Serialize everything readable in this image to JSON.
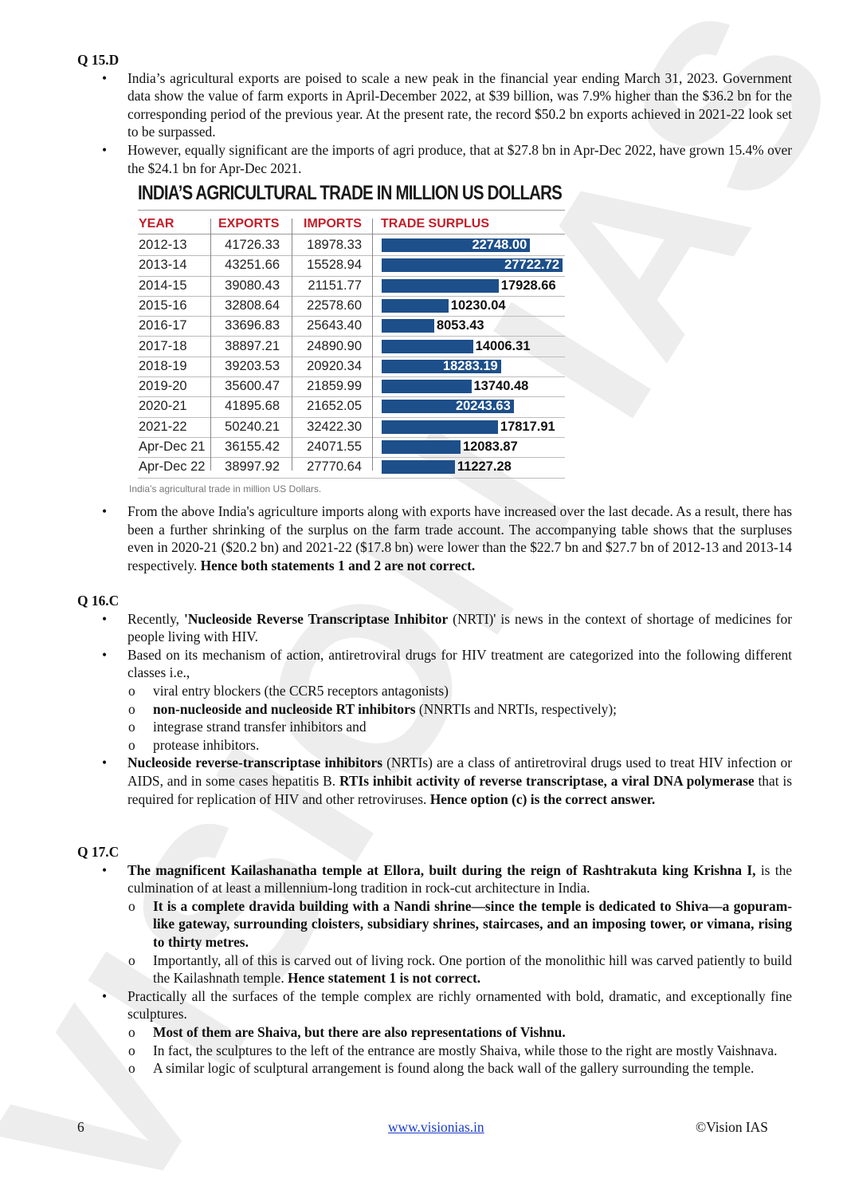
{
  "sections": [
    {
      "heading": "Q 15.D",
      "items": [
        {
          "type": "bullet",
          "segs": [
            {
              "t": "India’s agricultural exports are poised to scale a new peak in the financial year ending March 31, 2023. Government data show the value of farm exports in April-December 2022, at $39 billion, was 7.9% higher than the $36.2 bn for the corresponding period of the previous year. At the present rate, the record $50.2 bn exports achieved in 2021-22 look set to be surpassed."
            }
          ]
        },
        {
          "type": "bullet",
          "segs": [
            {
              "t": "However, equally significant are the imports of agri produce, that at $27.8 bn in Apr-Dec 2022, have grown 15.4% over the $24.1 bn for Apr-Dec 2021."
            }
          ]
        }
      ]
    },
    {
      "heading": "",
      "items": [
        {
          "type": "bullet",
          "segs": [
            {
              "t": "From the above India's agriculture imports along with exports have increased over the last decade. As a result, there has been a further shrinking of the surplus on the farm trade account. The accompanying table shows that the surpluses even in 2020-21 ($20.2 bn) and 2021-22 ($17.8 bn) were lower than the $22.7 bn and $27.7 bn of 2012-13 and 2013-14 respectively. "
            },
            {
              "t": "Hence both statements 1 and 2 are not correct.",
              "b": true
            }
          ]
        }
      ]
    },
    {
      "heading": "Q 16.C",
      "items": [
        {
          "type": "bullet",
          "segs": [
            {
              "t": "Recently, "
            },
            {
              "t": "'Nucleoside Reverse Transcriptase Inhibitor",
              "b": true
            },
            {
              "t": " (NRTI)' is news in the context of shortage of medicines for people living with HIV."
            }
          ]
        },
        {
          "type": "bullet",
          "segs": [
            {
              "t": "Based on its mechanism of action, antiretroviral drugs for HIV treatment are categorized into the following different classes i.e.,"
            }
          ]
        },
        {
          "type": "sub",
          "segs": [
            {
              "t": "viral entry blockers (the CCR5 receptors antagonists)"
            }
          ]
        },
        {
          "type": "sub",
          "segs": [
            {
              "t": "non-nucleoside and nucleoside RT inhibitors",
              "b": true
            },
            {
              "t": " (NNRTIs and NRTIs, respectively);"
            }
          ]
        },
        {
          "type": "sub",
          "segs": [
            {
              "t": "integrase strand transfer inhibitors and"
            }
          ]
        },
        {
          "type": "sub",
          "segs": [
            {
              "t": "protease inhibitors."
            }
          ]
        },
        {
          "type": "bullet",
          "segs": [
            {
              "t": "Nucleoside reverse-transcriptase inhibitors",
              "b": true
            },
            {
              "t": " (NRTIs) are a class of antiretroviral drugs used to treat HIV infection or AIDS, and in some cases hepatitis B. "
            },
            {
              "t": "RTIs inhibit activity of reverse transcriptase, a viral DNA polymerase",
              "b": true
            },
            {
              "t": " that is required for replication of HIV and other retroviruses. "
            },
            {
              "t": "Hence option (c) is the correct answer.",
              "b": true
            }
          ]
        }
      ]
    },
    {
      "heading": "Q 17.C",
      "items": [
        {
          "type": "bullet",
          "segs": [
            {
              "t": "The magnificent Kailashanatha temple at Ellora, built during the reign of Rashtrakuta king Krishna I,",
              "b": true
            },
            {
              "t": " is the culmination of at least a millennium-long tradition in rock-cut architecture in India."
            }
          ]
        },
        {
          "type": "sub",
          "segs": [
            {
              "t": "It is a complete dravida building with a Nandi shrine—since the temple is dedicated to Shiva—a gopuram-like gateway, surrounding cloisters, subsidiary shrines, staircases, and an imposing tower, or vimana, rising to thirty metres.",
              "b": true
            }
          ]
        },
        {
          "type": "sub",
          "segs": [
            {
              "t": "Importantly, all of this is carved out of living rock. One portion of the monolithic hill was carved patiently to build the Kailashnath temple. "
            },
            {
              "t": "Hence statement 1 is not correct.",
              "b": true
            }
          ]
        },
        {
          "type": "bullet",
          "segs": [
            {
              "t": "Practically all the surfaces of the temple complex are richly ornamented with bold, dramatic, and exceptionally fine sculptures."
            }
          ]
        },
        {
          "type": "sub",
          "segs": [
            {
              "t": "Most of them are Shaiva, but there are also representations of Vishnu.",
              "b": true
            }
          ]
        },
        {
          "type": "sub",
          "segs": [
            {
              "t": "In fact, the sculptures to the left of the entrance are mostly Shaiva, while those to the right are mostly Vaishnava."
            }
          ]
        },
        {
          "type": "sub",
          "segs": [
            {
              "t": "A similar logic of sculptural arrangement is found along the back wall of the gallery surrounding the temple."
            }
          ]
        }
      ]
    }
  ],
  "markers": {
    "bullet": "•",
    "sub": "o"
  },
  "chart_data": {
    "type": "table",
    "title": "INDIA’S AGRICULTURAL TRADE IN MILLION US DOLLARS",
    "columns": [
      "YEAR",
      "EXPORTS",
      "IMPORTS",
      "TRADE SURPLUS"
    ],
    "header_color": "#c21f2a",
    "bar_color": "#1d4f8a",
    "rows": [
      {
        "year": "2012-13",
        "exports": "41726.33",
        "imports": "18978.33",
        "surplus": "22748.00",
        "value": 22748.0
      },
      {
        "year": "2013-14",
        "exports": "43251.66",
        "imports": "15528.94",
        "surplus": "27722.72",
        "value": 27722.72
      },
      {
        "year": "2014-15",
        "exports": "39080.43",
        "imports": "21151.77",
        "surplus": "17928.66",
        "value": 17928.66
      },
      {
        "year": "2015-16",
        "exports": "32808.64",
        "imports": "22578.60",
        "surplus": "10230.04",
        "value": 10230.04
      },
      {
        "year": "2016-17",
        "exports": "33696.83",
        "imports": "25643.40",
        "surplus": "8053.43",
        "value": 8053.43
      },
      {
        "year": "2017-18",
        "exports": "38897.21",
        "imports": "24890.90",
        "surplus": "14006.31",
        "value": 14006.31
      },
      {
        "year": "2018-19",
        "exports": "39203.53",
        "imports": "20920.34",
        "surplus": "18283.19",
        "value": 18283.19
      },
      {
        "year": "2019-20",
        "exports": "35600.47",
        "imports": "21859.99",
        "surplus": "13740.48",
        "value": 13740.48
      },
      {
        "year": "2020-21",
        "exports": "41895.68",
        "imports": "21652.05",
        "surplus": "20243.63",
        "value": 20243.63
      },
      {
        "year": "2021-22",
        "exports": "50240.21",
        "imports": "32422.30",
        "surplus": "17817.91",
        "value": 17817.91
      },
      {
        "year": "Apr-Dec 21",
        "exports": "36155.42",
        "imports": "24071.55",
        "surplus": "12083.87",
        "value": 12083.87
      },
      {
        "year": "Apr-Dec 22",
        "exports": "38997.92",
        "imports": "27770.64",
        "surplus": "11227.28",
        "value": 11227.28
      }
    ],
    "labels_inside": [
      "2012-13",
      "2013-14",
      "2018-19",
      "2020-21"
    ],
    "caption": "India’s agricultural trade in million US Dollars."
  },
  "watermark": "VISION IAS",
  "footer": {
    "page": "6",
    "link": "www.visionias.in",
    "copyright": "©Vision IAS"
  }
}
